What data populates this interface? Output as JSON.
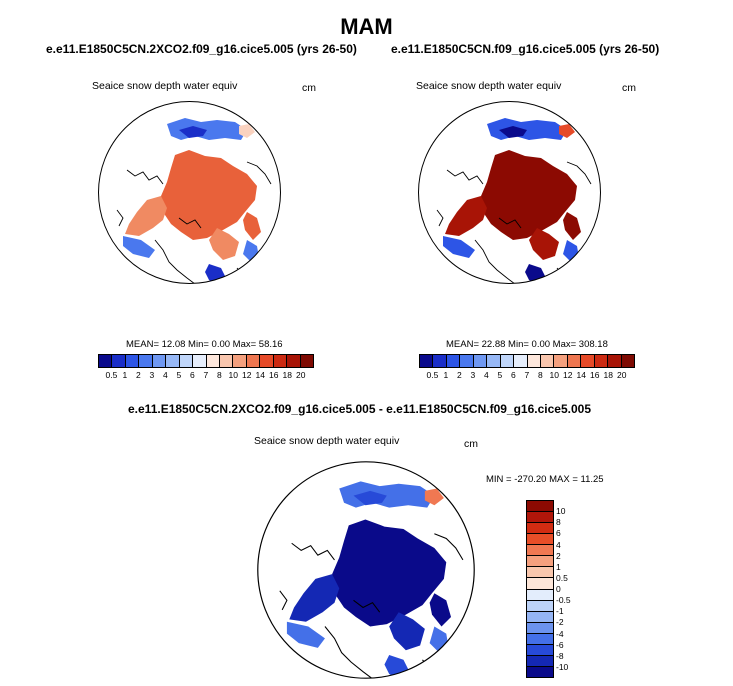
{
  "title": "MAM",
  "panels": [
    {
      "title": "e.e11.E1850C5CN.2XCO2.f09_g16.cice5.005 (yrs 26-50)",
      "variable": "Seaice snow depth water equiv",
      "units": "cm",
      "stats": "MEAN= 12.08  Min= 0.00  Max= 58.16",
      "fill": "medium"
    },
    {
      "title": "e.e11.E1850C5CN.f09_g16.cice5.005 (yrs 26-50)",
      "variable": "Seaice snow depth water equiv",
      "units": "cm",
      "stats": "MEAN= 22.88  Min= 0.00  Max= 308.18",
      "fill": "heavy"
    },
    {
      "title": "e.e11.E1850C5CN.2XCO2.f09_g16.cice5.005 - e.e11.E1850C5CN.f09_g16.cice5.005",
      "variable": "Seaice snow depth water equiv",
      "units": "cm",
      "stats": "MIN = -270.20 MAX = 11.25",
      "fill": "diff"
    }
  ],
  "colorbar_abs": {
    "labels": [
      "0.5",
      "1",
      "2",
      "3",
      "4",
      "5",
      "6",
      "7",
      "8",
      "10",
      "12",
      "14",
      "16",
      "18",
      "20"
    ],
    "colors": [
      "#0a0a8c",
      "#1a2ec8",
      "#2d55e6",
      "#4a78ee",
      "#6f98f2",
      "#97b8f6",
      "#c0d6fa",
      "#e6eefc",
      "#fde7dc",
      "#f9c6ae",
      "#f4a07e",
      "#ee7650",
      "#e64a28",
      "#cc2a12",
      "#a81406",
      "#7e0a02"
    ]
  },
  "colorbar_diff": {
    "labels": [
      "10",
      "8",
      "6",
      "4",
      "2",
      "1",
      "0.5",
      "0",
      "-0.5",
      "-1",
      "-2",
      "-4",
      "-6",
      "-8",
      "-10"
    ],
    "colors": [
      "#8c0a02",
      "#b0160a",
      "#d22c12",
      "#e84e28",
      "#f07852",
      "#f5a07e",
      "#f9c7ad",
      "#fde6d8",
      "#e3edfc",
      "#bdd3f8",
      "#95b5f4",
      "#6c93ee",
      "#4470e8",
      "#274ad8",
      "#1428b4",
      "#0a0a8a"
    ]
  }
}
